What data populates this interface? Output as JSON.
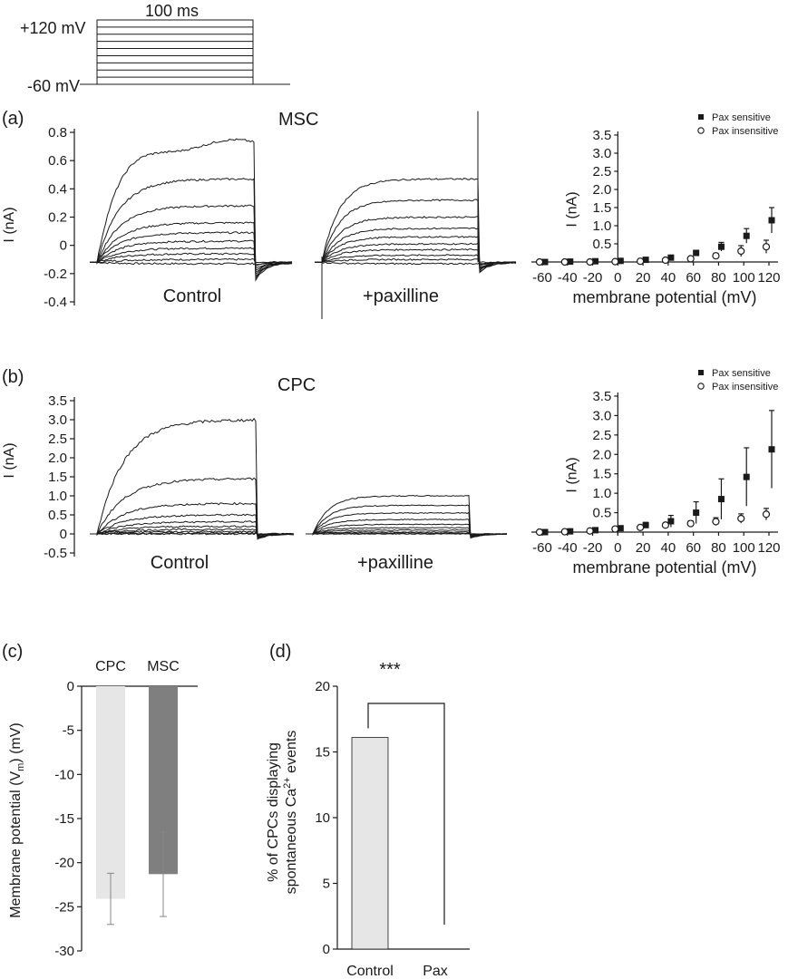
{
  "protocol": {
    "duration_label": "100 ms",
    "top_label": "+120 mV",
    "bottom_label": "-60 mV",
    "steps_mV": [
      -60,
      -40,
      -20,
      0,
      20,
      40,
      60,
      80,
      100,
      120
    ]
  },
  "panel_a": {
    "letter": "(a)",
    "title": "MSC",
    "trace_ylabel": "I (nA)",
    "trace_yticks": [
      "0.8",
      "0.6",
      "0.4",
      "0.2",
      "0",
      "-0.2",
      "-0.4"
    ],
    "control_label": "Control",
    "pax_label": "+paxilline"
  },
  "panel_b": {
    "letter": "(b)",
    "title": "CPC",
    "trace_ylabel": "I (nA)",
    "trace_yticks": [
      "3.5",
      "3.0",
      "2.5",
      "2.0",
      "1.5",
      "1.0",
      "0.5",
      "0",
      "-0.5"
    ],
    "control_label": "Control",
    "pax_label": "+paxilline"
  },
  "panel_c": {
    "letter": "(c)"
  },
  "panel_d": {
    "letter": "(d)",
    "significance": "***"
  },
  "colors": {
    "cpc_bar": "#e6e6e6",
    "msc_bar": "#7f7f7f",
    "control_bar": "#e6e6e6",
    "ink": "#1a1a1a"
  },
  "chart_data": [
    {
      "id": "a-traces",
      "type": "line",
      "description_units": "nA",
      "ylim": [
        -0.4,
        0.8
      ],
      "series": [
        {
          "condition": "Control",
          "step_mV": [
            -60,
            -40,
            -20,
            0,
            20,
            40,
            60,
            80,
            100,
            120
          ],
          "steady_nA": [
            -0.13,
            -0.1,
            -0.06,
            -0.02,
            0.03,
            0.09,
            0.16,
            0.28,
            0.47,
            0.72
          ]
        },
        {
          "condition": "+paxilline",
          "step_mV": [
            -60,
            -40,
            -20,
            0,
            20,
            40,
            60,
            80,
            100,
            120
          ],
          "steady_nA": [
            -0.13,
            -0.1,
            -0.07,
            -0.03,
            0.01,
            0.06,
            0.12,
            0.2,
            0.32,
            0.47
          ]
        }
      ]
    },
    {
      "id": "a-iv",
      "type": "scatter",
      "xlabel": "membrane potential (mV)",
      "ylabel": "I (nA)",
      "x": [
        -60,
        -40,
        -20,
        0,
        20,
        40,
        60,
        80,
        100,
        120
      ],
      "xticks": [
        -60,
        -40,
        -20,
        0,
        20,
        40,
        60,
        80,
        100,
        120
      ],
      "yticks": [
        0.5,
        1.0,
        1.5,
        2.0,
        2.5,
        3.0,
        3.5
      ],
      "ylim": [
        0,
        3.5
      ],
      "legend_position": "top-right",
      "series": [
        {
          "name": "Pax sensitive",
          "marker": "filled-square",
          "values": [
            0.0,
            0.01,
            0.02,
            0.03,
            0.06,
            0.12,
            0.25,
            0.42,
            0.72,
            1.15
          ],
          "errors": [
            0.0,
            0.0,
            0.01,
            0.01,
            0.02,
            0.04,
            0.06,
            0.12,
            0.2,
            0.35
          ]
        },
        {
          "name": "Pax insensitive",
          "marker": "open-circle",
          "values": [
            0.0,
            0.0,
            0.0,
            0.01,
            0.02,
            0.05,
            0.09,
            0.17,
            0.3,
            0.42
          ],
          "errors": [
            0.0,
            0.0,
            0.0,
            0.01,
            0.01,
            0.02,
            0.04,
            0.07,
            0.15,
            0.18
          ]
        }
      ]
    },
    {
      "id": "b-traces",
      "type": "line",
      "description_units": "nA",
      "ylim": [
        -0.5,
        3.5
      ],
      "series": [
        {
          "condition": "Control",
          "step_mV": [
            -60,
            -40,
            -20,
            0,
            20,
            40,
            60,
            80,
            100,
            120
          ],
          "steady_nA": [
            0.0,
            0.02,
            0.06,
            0.12,
            0.2,
            0.32,
            0.5,
            0.8,
            1.45,
            3.0
          ]
        },
        {
          "condition": "+paxilline",
          "step_mV": [
            -60,
            -40,
            -20,
            0,
            20,
            40,
            60,
            80,
            100,
            120
          ],
          "steady_nA": [
            0.0,
            0.02,
            0.05,
            0.1,
            0.16,
            0.25,
            0.38,
            0.55,
            0.75,
            1.0
          ]
        }
      ]
    },
    {
      "id": "b-iv",
      "type": "scatter",
      "xlabel": "membrane potential (mV)",
      "ylabel": "I (nA)",
      "x": [
        -60,
        -40,
        -20,
        0,
        20,
        40,
        60,
        80,
        100,
        120
      ],
      "xticks": [
        -60,
        -40,
        -20,
        0,
        20,
        40,
        60,
        80,
        100,
        120
      ],
      "yticks": [
        0.5,
        1.0,
        1.5,
        2.0,
        2.5,
        3.0,
        3.5
      ],
      "ylim": [
        0,
        3.5
      ],
      "legend_position": "top-right",
      "series": [
        {
          "name": "Pax sensitive",
          "marker": "filled-square",
          "values": [
            0.0,
            0.02,
            0.05,
            0.1,
            0.18,
            0.28,
            0.5,
            0.85,
            1.42,
            2.13
          ],
          "errors": [
            0.0,
            0.02,
            0.03,
            0.05,
            0.07,
            0.15,
            0.28,
            0.52,
            0.75,
            1.0
          ]
        },
        {
          "name": "Pax insensitive",
          "marker": "open-circle",
          "values": [
            0.0,
            0.01,
            0.03,
            0.08,
            0.12,
            0.18,
            0.22,
            0.27,
            0.35,
            0.46
          ],
          "errors": [
            0.0,
            0.01,
            0.02,
            0.03,
            0.04,
            0.05,
            0.07,
            0.1,
            0.12,
            0.15
          ]
        }
      ]
    },
    {
      "id": "c-bar",
      "type": "bar",
      "categories": [
        "CPC",
        "MSC"
      ],
      "values": [
        -24.1,
        -21.3
      ],
      "errors": [
        2.9,
        4.8
      ],
      "ylabel_parts": {
        "main": "Membrane potential (V",
        "sub": "m",
        "end": ") (mV)"
      },
      "ylim": [
        -30,
        0
      ],
      "yticks": [
        0,
        -5,
        -10,
        -15,
        -20,
        -25,
        -30
      ]
    },
    {
      "id": "d-bar",
      "type": "bar",
      "categories": [
        "Control",
        "Pax"
      ],
      "values": [
        16.1,
        0
      ],
      "ylabel_line1": "% of CPCs displaying",
      "ylabel_line2_parts": {
        "pre": "spontaneous Ca",
        "sup": "2+",
        "post": " events"
      },
      "ylim": [
        0,
        20
      ],
      "yticks": [
        0,
        5,
        10,
        15,
        20
      ]
    }
  ]
}
